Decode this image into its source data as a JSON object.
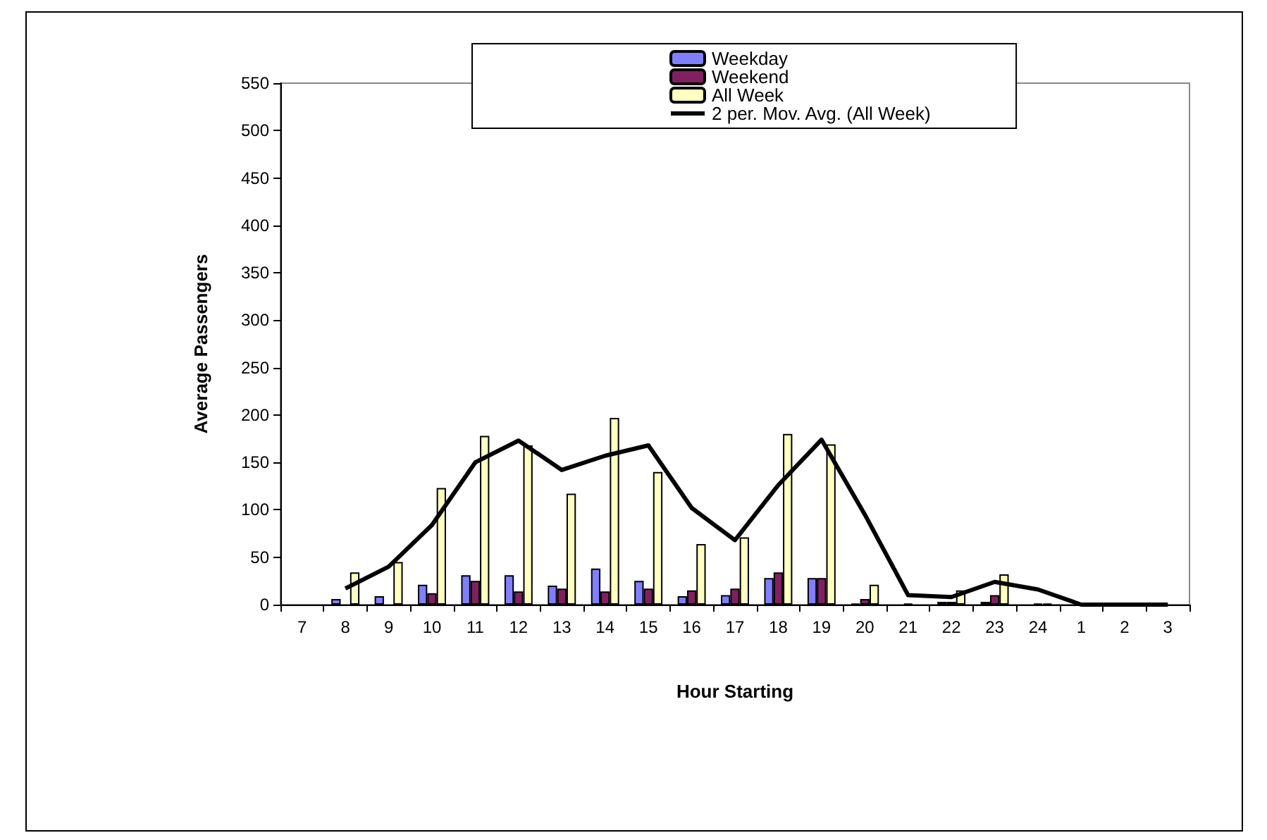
{
  "chart_data": {
    "type": "bar",
    "xlabel": "Hour Starting",
    "ylabel": "Average Passengers",
    "categories": [
      "7",
      "8",
      "9",
      "10",
      "11",
      "12",
      "13",
      "14",
      "15",
      "16",
      "17",
      "18",
      "19",
      "20",
      "21",
      "22",
      "23",
      "24",
      "1",
      "2",
      "3"
    ],
    "series": [
      {
        "name": "Weekday",
        "color": "#8080ff",
        "values": [
          0,
          6,
          9,
          21,
          31,
          31,
          20,
          38,
          25,
          9,
          10,
          28,
          28,
          1,
          0,
          3,
          3,
          0,
          0,
          0,
          0
        ]
      },
      {
        "name": "Weekend",
        "color": "#802060",
        "values": [
          0,
          0,
          0,
          12,
          25,
          14,
          17,
          14,
          17,
          15,
          17,
          34,
          28,
          6,
          1,
          3,
          10,
          1,
          0,
          0,
          0
        ]
      },
      {
        "name": "All Week",
        "color": "#ffffc0",
        "values": [
          0,
          34,
          45,
          123,
          178,
          168,
          117,
          197,
          140,
          64,
          71,
          180,
          169,
          21,
          0,
          15,
          32,
          1,
          0,
          0,
          0
        ]
      },
      {
        "name": "2 per. Mov. Avg. (All Week)",
        "type": "line",
        "color": "#000000",
        "values": [
          null,
          17,
          40,
          84,
          150,
          173,
          142,
          157,
          168,
          102,
          68,
          126,
          174,
          95,
          10,
          8,
          24,
          16,
          0,
          0,
          0
        ]
      }
    ],
    "ylim": [
      0,
      550
    ],
    "yticks": [
      0,
      50,
      100,
      150,
      200,
      250,
      300,
      350,
      400,
      450,
      500,
      550
    ],
    "grid": false,
    "legend": "top",
    "marker": "none",
    "line_style": "solid"
  }
}
